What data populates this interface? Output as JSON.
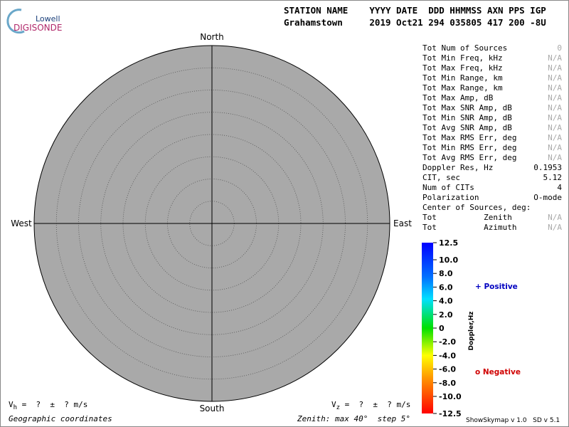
{
  "logo": {
    "top": "Lowell",
    "bottom": "DIGISONDE"
  },
  "header": {
    "labels": "STATION NAME    YYYY DATE  DDD HHMMSS AXN PPS IGP",
    "values": "Grahamstown     2019 Oct21 294 035805 417 200 -8U"
  },
  "skymap": {
    "north": "North",
    "south": "South",
    "east": "East",
    "west": "West"
  },
  "table": {
    "rows": [
      [
        "Tot Num of Sources",
        "0"
      ],
      [
        "Tot Min Freq, kHz",
        "N/A"
      ],
      [
        "Tot Max Freq, kHz",
        "N/A"
      ],
      [
        "Tot Min Range, km",
        "N/A"
      ],
      [
        "Tot Max Range, km",
        "N/A"
      ],
      [
        "Tot Max Amp, dB",
        "N/A"
      ],
      [
        "Tot Max SNR Amp, dB",
        "N/A"
      ],
      [
        "Tot Min SNR Amp, dB",
        "N/A"
      ],
      [
        "Tot Avg SNR Amp, dB",
        "N/A"
      ],
      [
        "Tot Max RMS Err, deg",
        "N/A"
      ],
      [
        "Tot Min RMS Err, deg",
        "N/A"
      ],
      [
        "Tot Avg RMS Err, deg",
        "N/A"
      ],
      [
        "Doppler Res, Hz",
        "0.1953"
      ],
      [
        "CIT, sec",
        "5.12"
      ],
      [
        "Num of CITs",
        "4"
      ],
      [
        "Polarization",
        "O-mode"
      ],
      [
        "Center of Sources, deg:",
        null
      ],
      [
        "Tot          Zenith",
        "N/A"
      ],
      [
        "Tot          Azimuth",
        "N/A"
      ]
    ]
  },
  "colorbar": {
    "label": "Doppler,Hz",
    "lim": [
      -12.5,
      12.5
    ],
    "ticks": [
      12.5,
      {
        "value": 10,
        "label": "10.0"
      },
      {
        "value": 8,
        "label": "8.0"
      },
      {
        "value": 6,
        "label": "6.0"
      },
      {
        "value": 4,
        "label": "4.0"
      },
      {
        "value": 2,
        "label": "2.0"
      },
      0,
      {
        "value": -2,
        "label": "-2.0"
      },
      {
        "value": -4,
        "label": "-4.0"
      },
      {
        "value": -6,
        "label": "-6.0"
      },
      {
        "value": -8,
        "label": "-8.0"
      },
      {
        "value": -10,
        "label": "-10.0"
      },
      -12.5
    ]
  },
  "legend": {
    "positive": "+ Positive",
    "negative": "o Negative"
  },
  "footer": {
    "vh": {
      "symbol": "V",
      "sub": "h",
      "text": " =  ?  ±  ? m/s"
    },
    "vz": {
      "symbol": "V",
      "sub": "z",
      "text": " =  ?  ±  ? m/s"
    },
    "coords": "Geographic coordinates",
    "zenith": "Zenith: max 40°  step 5°",
    "version": "ShowSkymap v 1.0   SD v 5.1"
  }
}
